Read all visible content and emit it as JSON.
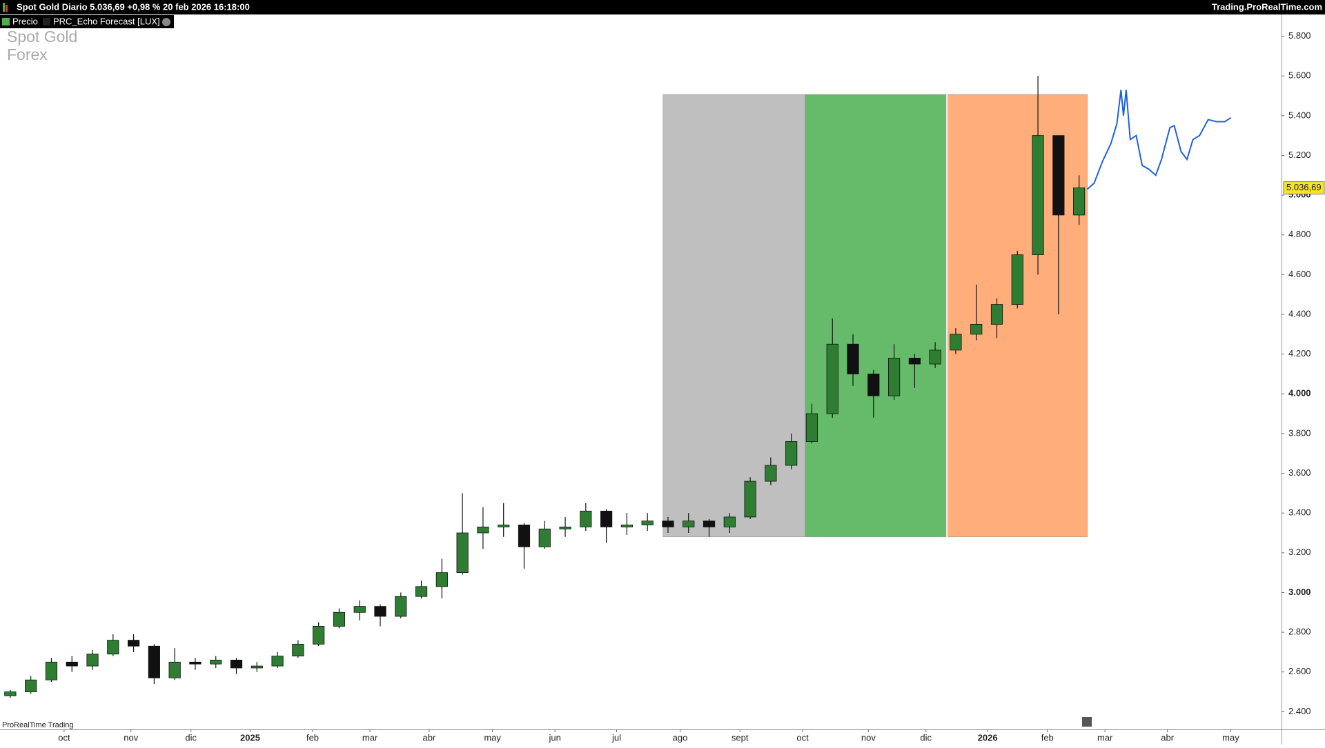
{
  "header": {
    "title": "Spot  Gold Diario 5.036,69 +0,98 % 20 feb 2026 16:18:00",
    "site": "Trading.ProRealTime.com",
    "tags": [
      "Precio",
      "PRC_Echo Forecast [LUX]"
    ],
    "watermark": [
      "Spot  Gold",
      "Forex"
    ],
    "footer": "ProRealTime Trading"
  },
  "chart_data": {
    "type": "candlestick",
    "open": [
      2480,
      2500,
      2560,
      2650,
      2630,
      2690,
      2760,
      2730,
      2570,
      2650,
      2640,
      2660,
      2620,
      2630,
      2680,
      2740,
      2830,
      2900,
      2930,
      2880,
      2980,
      3030,
      3100,
      3300,
      3330,
      3340,
      3230,
      3320,
      3330,
      3410,
      3330,
      3340,
      3360,
      3330,
      3360,
      3330,
      3380,
      3560,
      3640,
      3760,
      3900,
      4250,
      4100,
      3990,
      4180,
      4150,
      4220,
      4300,
      4350,
      4450,
      4700,
      5300,
      4900
    ],
    "high": [
      2510,
      2580,
      2670,
      2680,
      2710,
      2790,
      2790,
      2740,
      2720,
      2670,
      2680,
      2670,
      2650,
      2700,
      2760,
      2850,
      2920,
      2960,
      2940,
      3000,
      3060,
      3170,
      3500,
      3430,
      3450,
      3350,
      3360,
      3380,
      3450,
      3420,
      3400,
      3400,
      3380,
      3400,
      3370,
      3400,
      3580,
      3680,
      3800,
      3950,
      4380,
      4300,
      4120,
      4250,
      4200,
      4260,
      4330,
      4550,
      4480,
      4720,
      5600,
      5300,
      5100
    ],
    "low": [
      2470,
      2490,
      2550,
      2600,
      2610,
      2680,
      2700,
      2540,
      2560,
      2610,
      2620,
      2590,
      2600,
      2620,
      2670,
      2730,
      2820,
      2860,
      2830,
      2870,
      2970,
      2970,
      3090,
      3220,
      3280,
      3120,
      3220,
      3280,
      3310,
      3250,
      3290,
      3310,
      3300,
      3300,
      3280,
      3300,
      3370,
      3540,
      3620,
      3750,
      3880,
      4040,
      3880,
      3970,
      4030,
      4130,
      4200,
      4270,
      4280,
      4430,
      4600,
      4400,
      4850
    ],
    "close": [
      2500,
      2560,
      2650,
      2630,
      2690,
      2760,
      2730,
      2570,
      2650,
      2640,
      2660,
      2620,
      2630,
      2680,
      2740,
      2830,
      2900,
      2930,
      2880,
      2980,
      3030,
      3100,
      3300,
      3330,
      3340,
      3230,
      3320,
      3330,
      3410,
      3330,
      3340,
      3360,
      3330,
      3360,
      3330,
      3380,
      3560,
      3640,
      3760,
      3900,
      4250,
      4100,
      3990,
      4180,
      4150,
      4220,
      4300,
      4350,
      4450,
      4700,
      5300,
      4900,
      5036.69
    ],
    "up_color": "#2e7d32",
    "down_color": "#111111",
    "forecast": {
      "color": "#1f5fe0",
      "x": [
        52.4,
        52.73,
        53.14,
        53.55,
        53.84,
        54.04,
        54.16,
        54.29,
        54.49,
        54.78,
        55.07,
        55.4,
        55.73,
        56.01,
        56.42,
        56.63,
        56.96,
        57.25,
        57.54,
        57.86,
        58.28,
        58.69,
        59.1,
        59.38
      ],
      "values": [
        5030,
        5060,
        5170,
        5260,
        5360,
        5530,
        5400,
        5530,
        5280,
        5300,
        5150,
        5130,
        5100,
        5180,
        5340,
        5350,
        5220,
        5180,
        5280,
        5300,
        5380,
        5370,
        5370,
        5390
      ]
    },
    "zones": [
      {
        "x0": 31.76,
        "x1": 38.67,
        "y0": 3280,
        "y1": 5507,
        "color": "#bfbfbf"
      },
      {
        "x0": 38.67,
        "x1": 45.53,
        "y0": 3280,
        "y1": 5507,
        "color": "#66bb6a"
      },
      {
        "x0": 45.62,
        "x1": 52.4,
        "y0": 3280,
        "y1": 5507,
        "color": "#ffad7a"
      }
    ],
    "xlim": [
      -0.5,
      61.85
    ],
    "ylim": [
      2311,
      5906
    ],
    "xticks": [
      {
        "value": 2.62,
        "label": "oct"
      },
      {
        "value": 5.87,
        "label": "nov"
      },
      {
        "value": 8.79,
        "label": "dic"
      },
      {
        "value": 11.67,
        "label": "2025"
      },
      {
        "value": 14.71,
        "label": "feb"
      },
      {
        "value": 17.5,
        "label": "mar"
      },
      {
        "value": 20.38,
        "label": "abr"
      },
      {
        "value": 23.46,
        "label": "may"
      },
      {
        "value": 26.5,
        "label": "jun"
      },
      {
        "value": 29.5,
        "label": "jul"
      },
      {
        "value": 32.59,
        "label": "ago"
      },
      {
        "value": 35.5,
        "label": "sept"
      },
      {
        "value": 38.55,
        "label": "oct"
      },
      {
        "value": 41.75,
        "label": "nov"
      },
      {
        "value": 44.55,
        "label": "dic"
      },
      {
        "value": 47.55,
        "label": "2026"
      },
      {
        "value": 50.46,
        "label": "feb"
      },
      {
        "value": 53.26,
        "label": "mar"
      },
      {
        "value": 56.3,
        "label": "abr"
      },
      {
        "value": 59.38,
        "label": "may"
      }
    ],
    "yticks": [
      {
        "value": 2400,
        "label": "2.400"
      },
      {
        "value": 2600,
        "label": "2.600"
      },
      {
        "value": 2800,
        "label": "2.800"
      },
      {
        "value": 3000,
        "label": "3.000"
      },
      {
        "value": 3200,
        "label": "3.200"
      },
      {
        "value": 3400,
        "label": "3.400"
      },
      {
        "value": 3600,
        "label": "3.600"
      },
      {
        "value": 3800,
        "label": "3.800"
      },
      {
        "value": 4000,
        "label": "4.000"
      },
      {
        "value": 4200,
        "label": "4.200"
      },
      {
        "value": 4400,
        "label": "4.400"
      },
      {
        "value": 4600,
        "label": "4.600"
      },
      {
        "value": 4800,
        "label": "4.800"
      },
      {
        "value": 5000,
        "label": "5.000"
      },
      {
        "value": 5200,
        "label": "5.200"
      },
      {
        "value": 5400,
        "label": "5.400"
      },
      {
        "value": 5600,
        "label": "5.600"
      },
      {
        "value": 5800,
        "label": "5.800"
      }
    ],
    "last_price": {
      "value": 5036.69,
      "label": "5.036,69"
    }
  }
}
